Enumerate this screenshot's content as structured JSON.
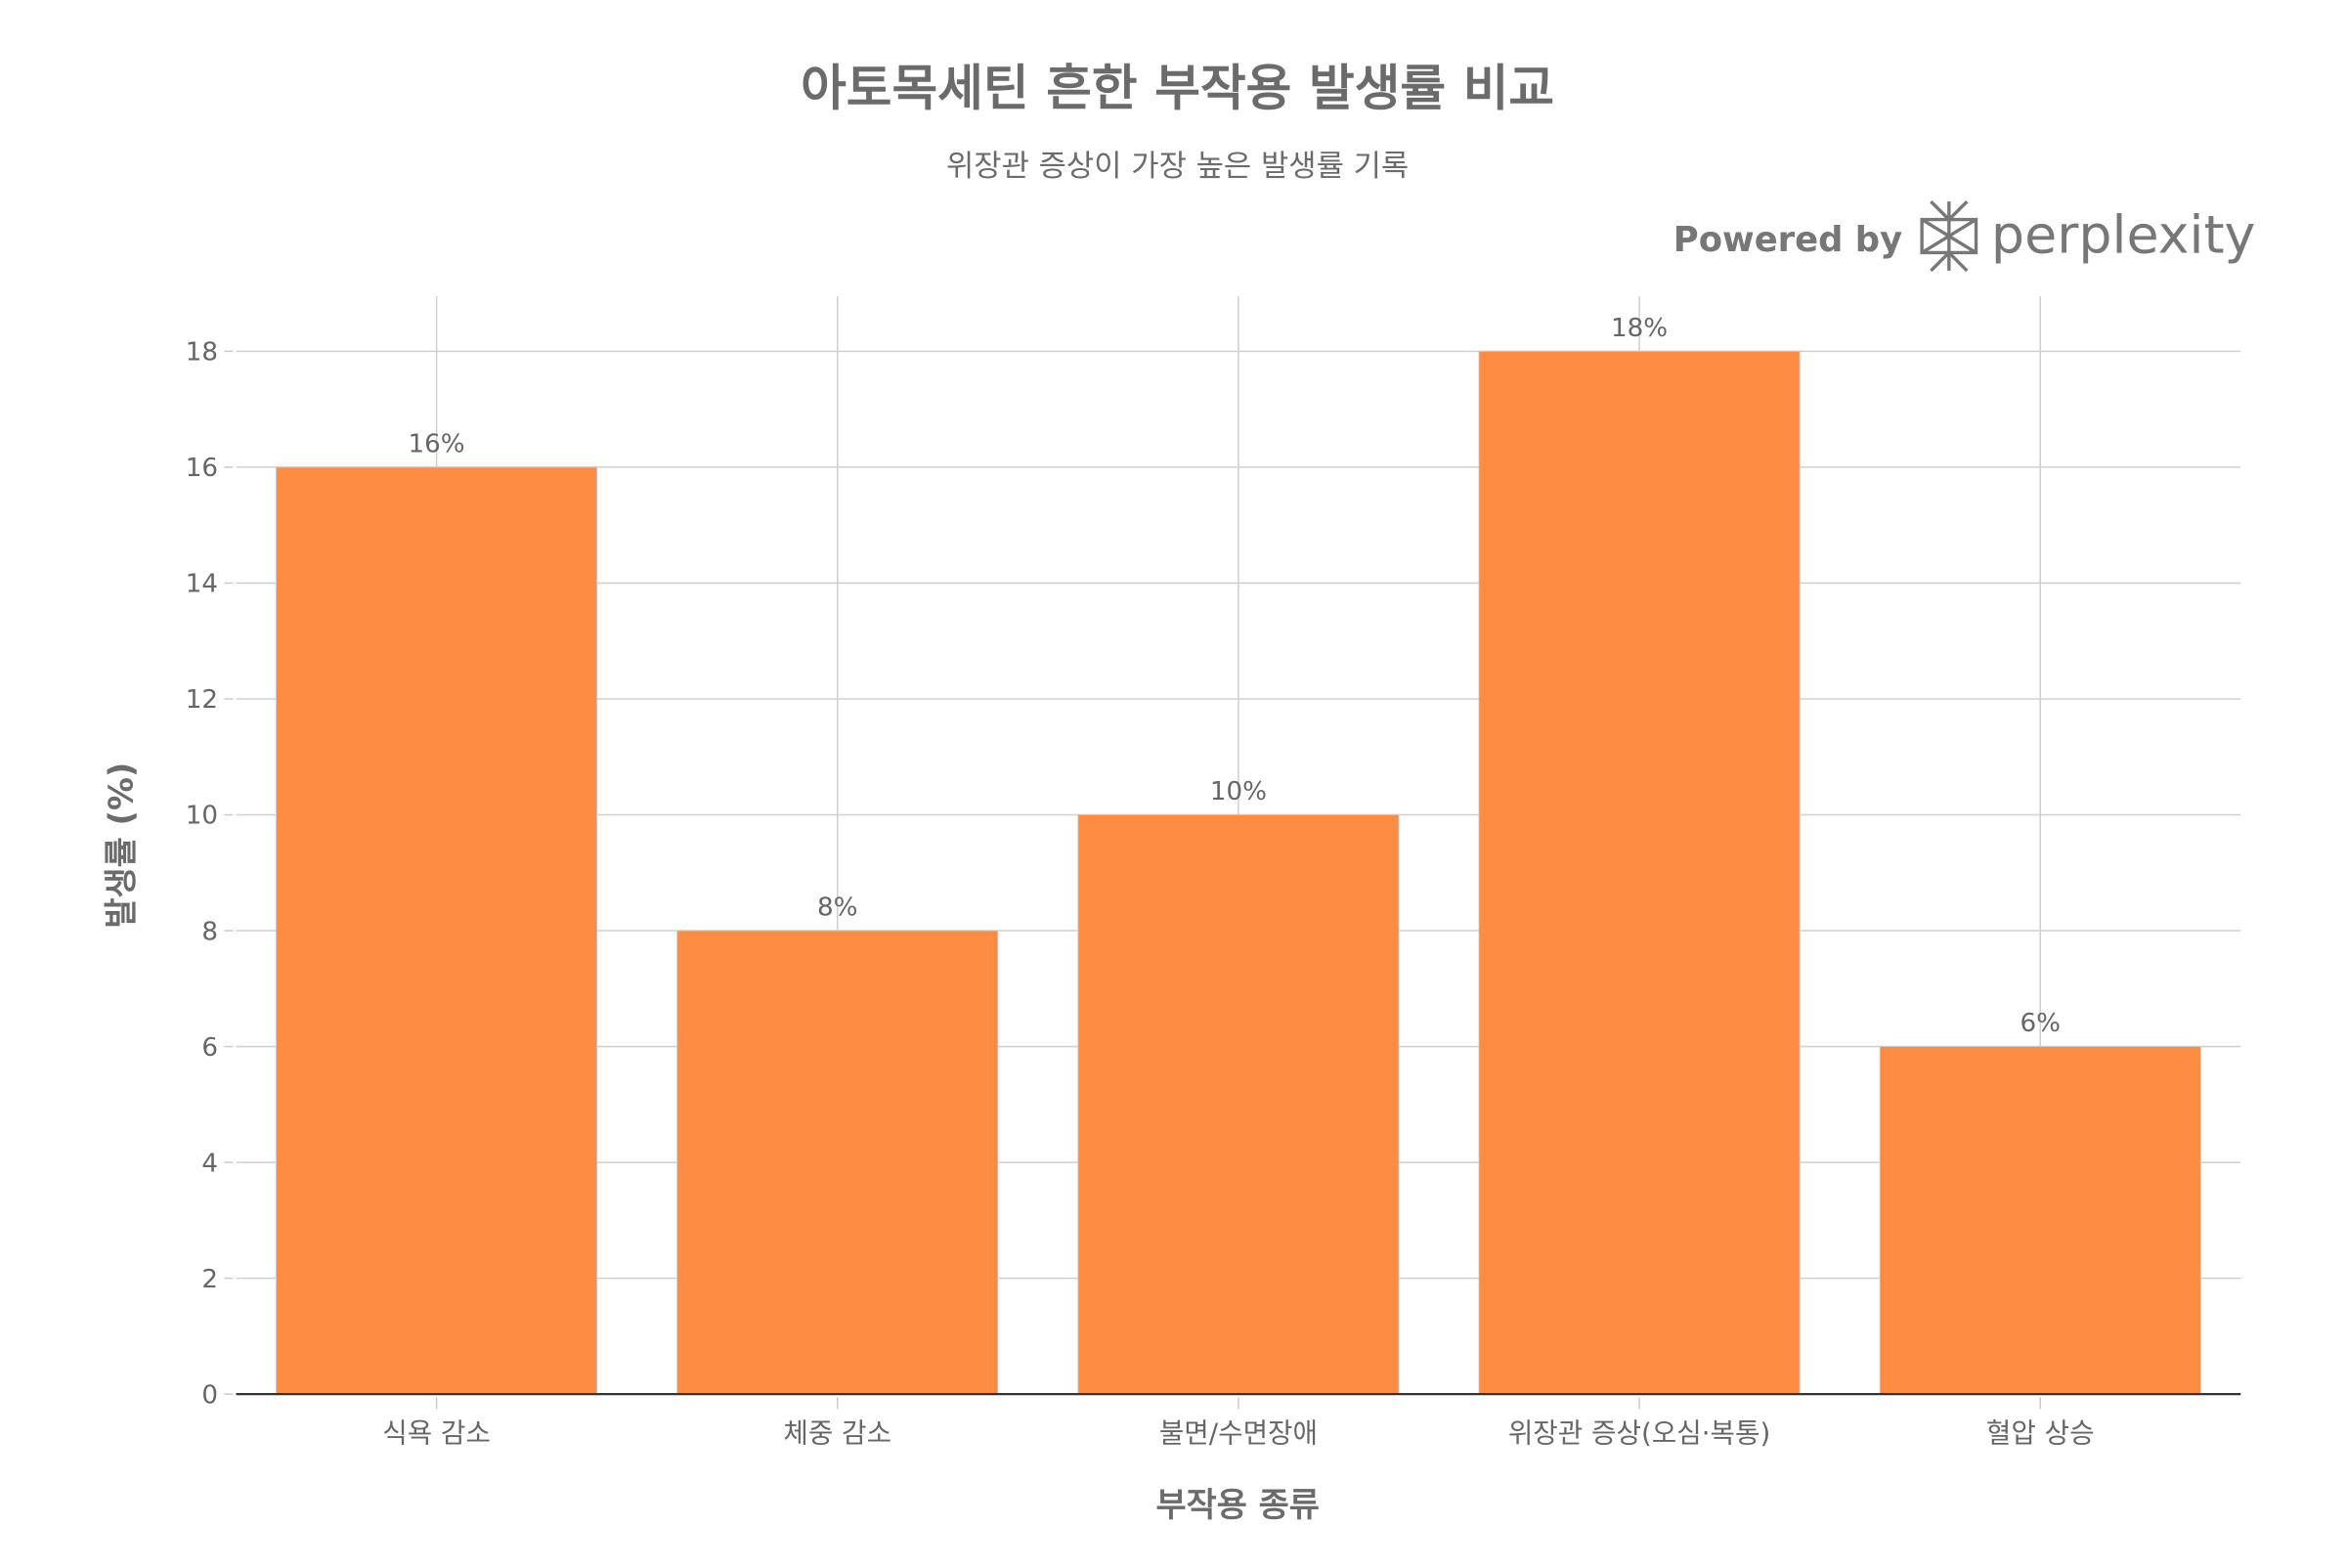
{
  "chart_data": {
    "type": "bar",
    "title": "아토목세틴 흔한 부작용 발생률 비교",
    "subtitle": "위장관 증상이 가장 높은 발생률 기록",
    "xlabel": "부작용 종류",
    "ylabel": "발생률 (%)",
    "categories": [
      "식욕 감소",
      "체중 감소",
      "불면/수면장애",
      "위장관 증상(오심·복통)",
      "혈압 상승"
    ],
    "values": [
      16,
      8,
      10,
      18,
      6
    ],
    "data_labels": [
      "16%",
      "8%",
      "10%",
      "18%",
      "6%"
    ],
    "ylim": [
      0,
      18.95
    ],
    "yticks": [
      0,
      2,
      4,
      6,
      8,
      10,
      12,
      14,
      16,
      18
    ],
    "grid": true,
    "bar_color": "#ff8c42"
  },
  "branding": {
    "powered_by": "Powered by",
    "brand": "perplexity"
  }
}
